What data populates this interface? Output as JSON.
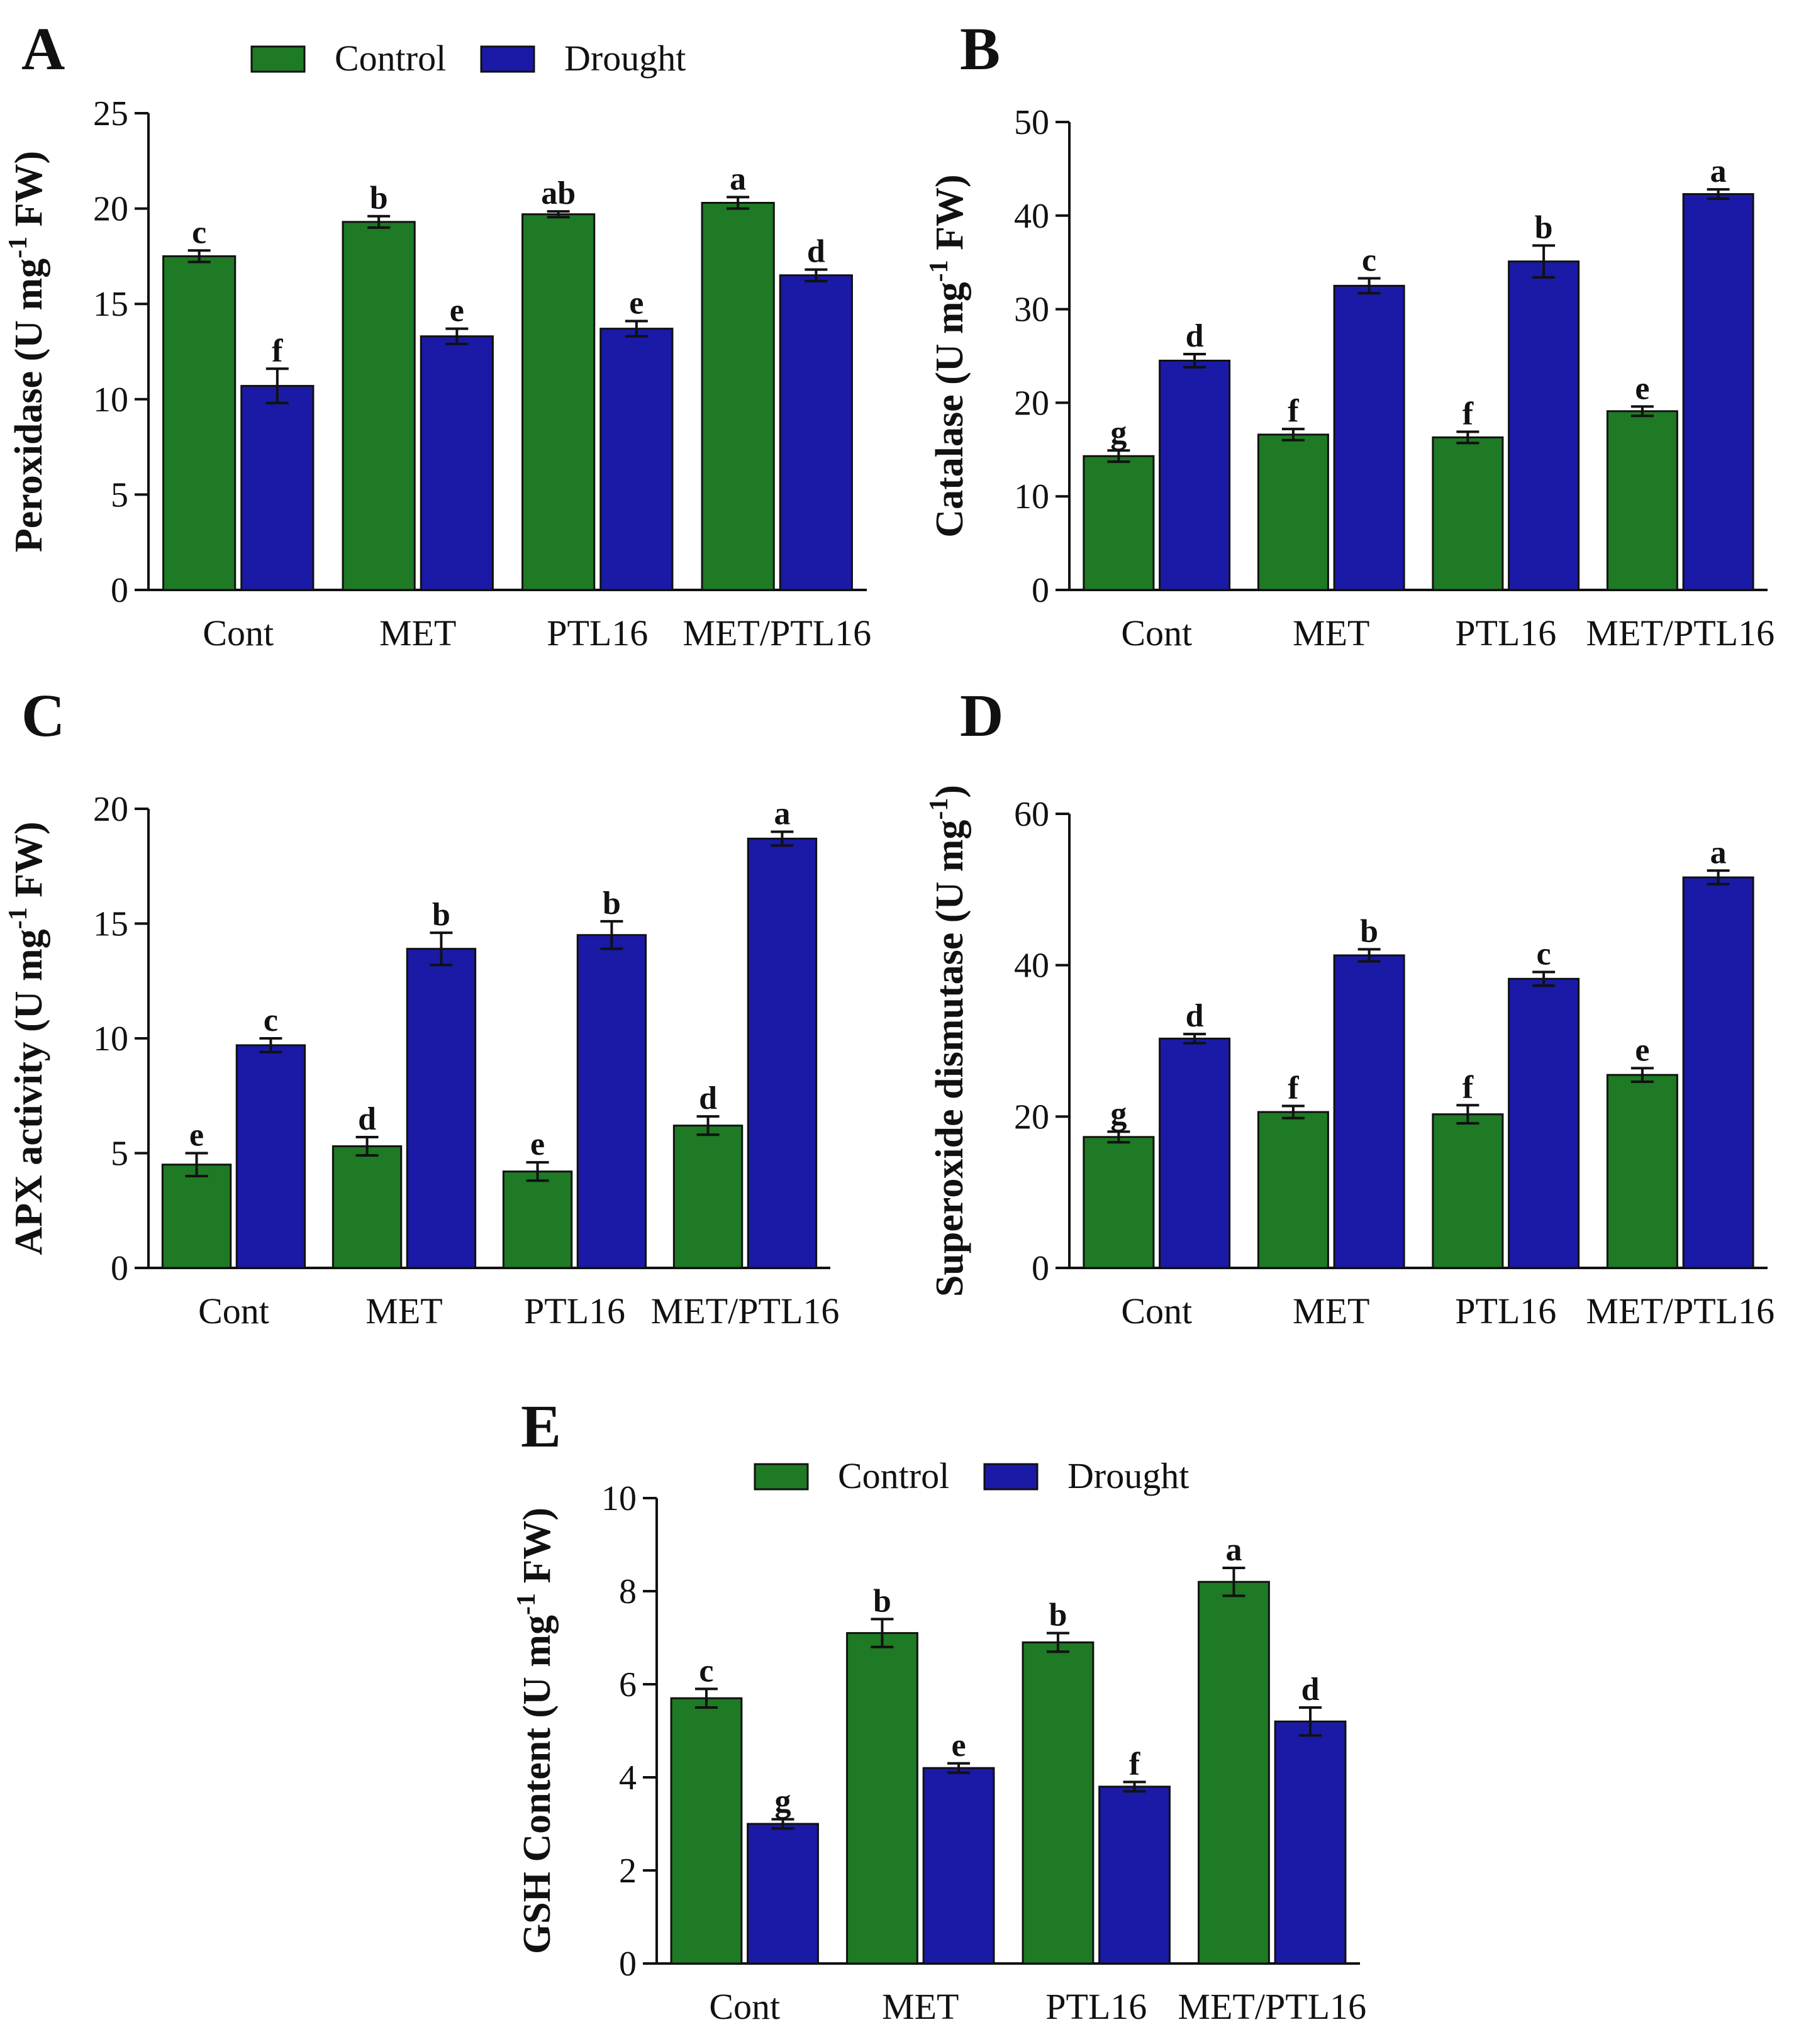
{
  "colors": {
    "control": "#1e7a24",
    "drought": "#1a1aa6",
    "axis": "#111111"
  },
  "legend": {
    "items": [
      {
        "label": "Control",
        "color_key": "control"
      },
      {
        "label": "Drought",
        "color_key": "drought"
      }
    ]
  },
  "chart_data": [
    {
      "panel": "A",
      "type": "bar",
      "categories": [
        "Cont",
        "MET",
        "PTL16",
        "MET/PTL16"
      ],
      "series": [
        {
          "name": "Control",
          "values": [
            17.5,
            19.3,
            19.7,
            20.3
          ],
          "errors": [
            0.3,
            0.3,
            0.15,
            0.3
          ],
          "letters": [
            "c",
            "b",
            "ab",
            "a"
          ]
        },
        {
          "name": "Drought",
          "values": [
            10.7,
            13.3,
            13.7,
            16.5
          ],
          "errors": [
            0.9,
            0.4,
            0.4,
            0.3
          ],
          "letters": [
            "f",
            "e",
            "e",
            "d"
          ]
        }
      ],
      "ylabel": {
        "pre": "Peroxidase (U mg",
        "sup": "-1",
        "post": " FW)"
      },
      "ylim": [
        0,
        25
      ],
      "yticks": [
        0,
        5,
        10,
        15,
        20,
        25
      ],
      "legend_visible": true
    },
    {
      "panel": "B",
      "type": "bar",
      "categories": [
        "Cont",
        "MET",
        "PTL16",
        "MET/PTL16"
      ],
      "series": [
        {
          "name": "Control",
          "values": [
            14.3,
            16.6,
            16.3,
            19.1
          ],
          "errors": [
            0.6,
            0.6,
            0.6,
            0.5
          ],
          "letters": [
            "g",
            "f",
            "f",
            "e"
          ]
        },
        {
          "name": "Drought",
          "values": [
            24.5,
            32.5,
            35.1,
            42.3
          ],
          "errors": [
            0.7,
            0.8,
            1.7,
            0.5
          ],
          "letters": [
            "d",
            "c",
            "b",
            "a"
          ]
        }
      ],
      "ylabel": {
        "pre": "Catalase (U mg",
        "sup": "-1",
        "post": " FW)"
      },
      "ylim": [
        0,
        50
      ],
      "yticks": [
        0,
        10,
        20,
        30,
        40,
        50
      ],
      "legend_visible": false
    },
    {
      "panel": "C",
      "type": "bar",
      "categories": [
        "Cont",
        "MET",
        "PTL16",
        "MET/PTL16"
      ],
      "series": [
        {
          "name": "Control",
          "values": [
            4.5,
            5.3,
            4.2,
            6.2
          ],
          "errors": [
            0.5,
            0.4,
            0.4,
            0.4
          ],
          "letters": [
            "e",
            "d",
            "e",
            "d"
          ]
        },
        {
          "name": "Drought",
          "values": [
            9.7,
            13.9,
            14.5,
            18.7
          ],
          "errors": [
            0.3,
            0.7,
            0.6,
            0.3
          ],
          "letters": [
            "c",
            "b",
            "b",
            "a"
          ]
        }
      ],
      "ylabel": {
        "pre": "APX activity (U mg",
        "sup": "-1",
        "post": " FW)"
      },
      "ylim": [
        0,
        20
      ],
      "yticks": [
        0,
        5,
        10,
        15,
        20
      ],
      "legend_visible": false
    },
    {
      "panel": "D",
      "type": "bar",
      "categories": [
        "Cont",
        "MET",
        "PTL16",
        "MET/PTL16"
      ],
      "series": [
        {
          "name": "Control",
          "values": [
            17.3,
            20.6,
            20.3,
            25.5
          ],
          "errors": [
            0.7,
            0.8,
            1.2,
            0.9
          ],
          "letters": [
            "g",
            "f",
            "f",
            "e"
          ]
        },
        {
          "name": "Drought",
          "values": [
            30.3,
            41.3,
            38.2,
            51.6
          ],
          "errors": [
            0.6,
            0.8,
            0.9,
            0.9
          ],
          "letters": [
            "d",
            "b",
            "c",
            "a"
          ]
        }
      ],
      "ylabel": {
        "pre": "Superoxide dismutase (U mg",
        "sup": "-1",
        "post": ")"
      },
      "ylim": [
        0,
        60
      ],
      "yticks": [
        0,
        20,
        40,
        60
      ],
      "legend_visible": false
    },
    {
      "panel": "E",
      "type": "bar",
      "categories": [
        "Cont",
        "MET",
        "PTL16",
        "MET/PTL16"
      ],
      "series": [
        {
          "name": "Control",
          "values": [
            5.7,
            7.1,
            6.9,
            8.2
          ],
          "errors": [
            0.2,
            0.3,
            0.2,
            0.3
          ],
          "letters": [
            "c",
            "b",
            "b",
            "a"
          ]
        },
        {
          "name": "Drought",
          "values": [
            3.0,
            4.2,
            3.8,
            5.2
          ],
          "errors": [
            0.1,
            0.1,
            0.1,
            0.3
          ],
          "letters": [
            "g",
            "e",
            "f",
            "d"
          ]
        }
      ],
      "ylabel": {
        "pre": "GSH Content (U mg",
        "sup": "-1",
        "post": " FW)"
      },
      "ylim": [
        0,
        10
      ],
      "yticks": [
        0,
        2,
        4,
        6,
        8,
        10
      ],
      "legend_visible": true
    }
  ]
}
